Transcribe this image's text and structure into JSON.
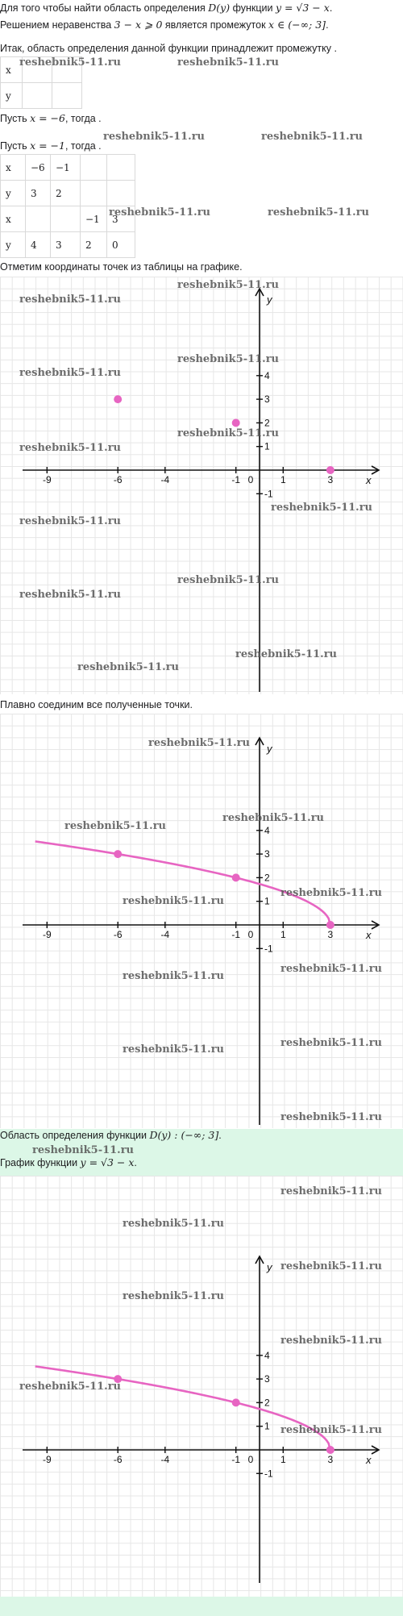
{
  "intro": {
    "l1_a": "Для того чтобы найти область определения ",
    "l1_math1": "D(y)",
    "l1_b": " функции ",
    "l1_math2": "y = √3 − x",
    "l1_c": ".",
    "l2_a": "Решением неравенства ",
    "l2_math1": "3 − x ⩾ 0",
    "l2_b": " является промежуток ",
    "l2_math2": "x ∈ (−∞; 3]",
    "l2_c": ".",
    "l3": "Итак, область определения данной функции принадлежит промежутку ."
  },
  "table1": {
    "row1": "x",
    "row2": "y"
  },
  "let1": {
    "a": "Пусть ",
    "math": "x = −6",
    "b": ", тогда ."
  },
  "let2": {
    "a": "Пусть ",
    "math": "x = −1",
    "b": ", тогда ."
  },
  "table2": {
    "r1": [
      "x",
      "−6",
      "−1",
      "",
      ""
    ],
    "r2": [
      "y",
      "3",
      "2",
      "",
      ""
    ],
    "r3": [
      "x",
      "",
      "",
      "−1",
      "3"
    ],
    "r4": [
      "y",
      "4",
      "3",
      "2",
      "0"
    ]
  },
  "mark_text": "Отметим координаты точек из таблицы на графике.",
  "connect_text": "Плавно соединим все полученные точки.",
  "answer": {
    "l1_a": "Область определения функции ",
    "l1_math": "D(y) : (−∞; 3]",
    "l1_b": ".",
    "l2_a": "График функции ",
    "l2_math": "y = √3 − x",
    "l2_b": "."
  },
  "watermark": "reshebnik5-11.ru",
  "chart_data": [
    {
      "type": "scatter",
      "x_ticks": [
        "-9",
        "-6",
        "-4",
        "-1",
        "0",
        "1",
        "3"
      ],
      "y_ticks": [
        "4",
        "3",
        "2",
        "1",
        "-1"
      ],
      "xlabel": "x",
      "ylabel": "y",
      "points": [
        {
          "x": -6,
          "y": 3
        },
        {
          "x": -1,
          "y": 2
        },
        {
          "x": 3,
          "y": 0
        }
      ],
      "color": "#e765c2"
    },
    {
      "type": "line",
      "x_ticks": [
        "-9",
        "-6",
        "-4",
        "-1",
        "0",
        "1",
        "3"
      ],
      "y_ticks": [
        "4",
        "3",
        "2",
        "1",
        "-1"
      ],
      "xlabel": "x",
      "ylabel": "y",
      "function": "y = sqrt(3 - x)",
      "x_range": [
        -9.5,
        3
      ],
      "points": [
        {
          "x": -6,
          "y": 3
        },
        {
          "x": -1,
          "y": 2
        },
        {
          "x": 3,
          "y": 0
        }
      ],
      "color": "#e765c2"
    },
    {
      "type": "line",
      "x_ticks": [
        "-9",
        "-6",
        "-4",
        "-1",
        "0",
        "1",
        "3"
      ],
      "y_ticks": [
        "4",
        "3",
        "2",
        "1",
        "-1"
      ],
      "xlabel": "x",
      "ylabel": "y",
      "function": "y = sqrt(3 - x)",
      "x_range": [
        -9.5,
        3
      ],
      "points": [
        {
          "x": -6,
          "y": 3
        },
        {
          "x": -1,
          "y": 2
        },
        {
          "x": 3,
          "y": 0
        }
      ],
      "color": "#e765c2"
    }
  ]
}
